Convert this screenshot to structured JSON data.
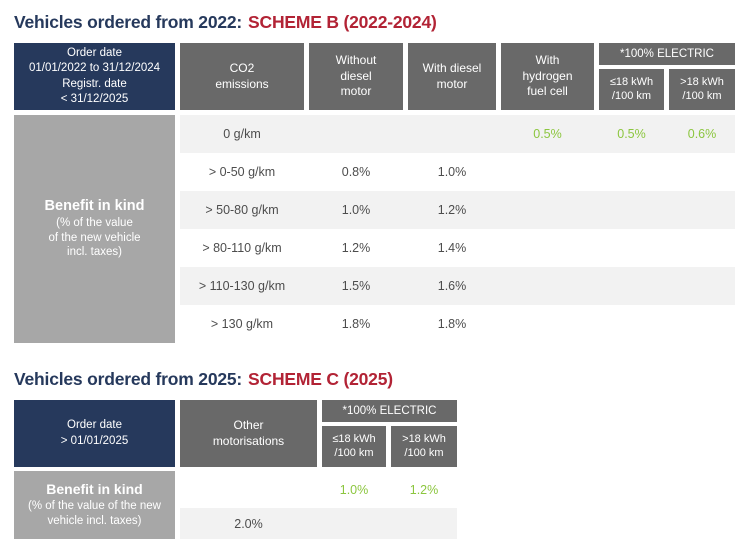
{
  "colors": {
    "navy": "#26395C",
    "red": "#B22335",
    "header_gray": "#696969",
    "label_gray": "#A7A7A7",
    "stripe": "#F2F2F2",
    "green": "#8CC63F",
    "text_dark": "#4D4D4D",
    "white": "#FFFFFF",
    "page_bg": "#FFFFFF"
  },
  "scheme_b": {
    "title_prefix": "Vehicles ordered from 2022:",
    "title_scheme": "SCHEME B (2022-2024)",
    "header": {
      "order_date": "Order date\n01/01/2022 to 31/12/2024\nRegistr. date\n< 31/12/2025",
      "co2": "CO2\nemissions",
      "without_diesel": "Without\ndiesel\nmotor",
      "with_diesel": "With diesel\nmotor",
      "hydrogen": "With\nhydrogen\nfuel cell",
      "electric_group": "*100% ELECTRIC",
      "electric_le18": "≤18 kWh\n/100 km",
      "electric_gt18": ">18 kWh\n/100 km"
    },
    "benefit": {
      "title": "Benefit in kind",
      "subtitle": "(% of the value\nof the new vehicle\nincl. taxes)"
    },
    "rows": [
      {
        "co2": "0 g/km",
        "without": "",
        "with": "",
        "hydrogen": "0.5%",
        "le18": "0.5%",
        "gt18": "0.6%"
      },
      {
        "co2": "> 0-50 g/km",
        "without": "0.8%",
        "with": "1.0%",
        "hydrogen": "",
        "le18": "",
        "gt18": ""
      },
      {
        "co2": "> 50-80 g/km",
        "without": "1.0%",
        "with": "1.2%",
        "hydrogen": "",
        "le18": "",
        "gt18": ""
      },
      {
        "co2": "> 80-110 g/km",
        "without": "1.2%",
        "with": "1.4%",
        "hydrogen": "",
        "le18": "",
        "gt18": ""
      },
      {
        "co2": "> 110-130 g/km",
        "without": "1.5%",
        "with": "1.6%",
        "hydrogen": "",
        "le18": "",
        "gt18": ""
      },
      {
        "co2": "> 130 g/km",
        "without": "1.8%",
        "with": "1.8%",
        "hydrogen": "",
        "le18": "",
        "gt18": ""
      }
    ]
  },
  "scheme_c": {
    "title_prefix": "Vehicles ordered from 2025:",
    "title_scheme": "SCHEME C (2025)",
    "header": {
      "order_date": "Order date\n> 01/01/2025",
      "other": "Other\nmotorisations",
      "electric_group": "*100% ELECTRIC",
      "electric_le18": "≤18 kWh\n/100 km",
      "electric_gt18": ">18 kWh\n/100 km"
    },
    "benefit": {
      "title": "Benefit in kind",
      "subtitle": "(% of the value of the new\nvehicle incl. taxes)"
    },
    "rows": [
      {
        "other": "",
        "le18": "1.0%",
        "gt18": "1.2%"
      },
      {
        "other": "2.0%",
        "le18": "",
        "gt18": ""
      }
    ]
  }
}
